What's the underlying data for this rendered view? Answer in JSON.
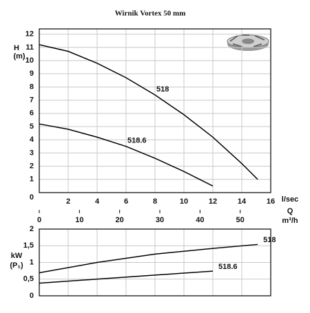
{
  "chart_data": [
    {
      "type": "line",
      "title": "Wirnik Vortex  50 mm",
      "y_label": "H",
      "y_unit": "(m)",
      "x_label": "l/sec",
      "x2_label": "Q",
      "x2_unit": "m³/h",
      "xlim": [
        0,
        16
      ],
      "xticks": [
        2,
        4,
        6,
        8,
        10,
        12,
        14,
        16
      ],
      "x2lim": [
        0,
        57.6
      ],
      "x2ticks": [
        0,
        10,
        20,
        30,
        40,
        50
      ],
      "ylim": [
        0,
        12.4
      ],
      "yticks": [
        0,
        1,
        2,
        3,
        4,
        5,
        6,
        7,
        8,
        9,
        10,
        11,
        12
      ],
      "grid": true,
      "series": [
        {
          "name": "518",
          "color": "#000000",
          "x": [
            0,
            2,
            4,
            6,
            8,
            10,
            12,
            14,
            15.1
          ],
          "values": [
            11.2,
            10.7,
            9.8,
            8.7,
            7.4,
            5.9,
            4.2,
            2.2,
            1.0
          ]
        },
        {
          "name": "518.6",
          "color": "#000000",
          "x": [
            0,
            2,
            4,
            6,
            8,
            10,
            12
          ],
          "values": [
            5.2,
            4.8,
            4.2,
            3.5,
            2.6,
            1.6,
            0.5
          ]
        }
      ]
    },
    {
      "type": "line",
      "y_label": "kW",
      "y_unit": "(P₁)",
      "xlim": [
        0,
        16
      ],
      "ylim": [
        0,
        2
      ],
      "yticks": [
        0,
        {
          "value": 0.5,
          "label": "0,5"
        },
        1,
        {
          "value": 1.5,
          "label": "1,5"
        },
        2
      ],
      "grid": true,
      "series": [
        {
          "name": "518",
          "color": "#000000",
          "x": [
            0,
            4,
            8,
            12,
            15.1
          ],
          "values": [
            0.69,
            1.0,
            1.25,
            1.42,
            1.54
          ]
        },
        {
          "name": "518.6",
          "color": "#000000",
          "x": [
            0,
            4,
            8,
            12
          ],
          "values": [
            0.38,
            0.5,
            0.62,
            0.74
          ]
        }
      ]
    }
  ]
}
